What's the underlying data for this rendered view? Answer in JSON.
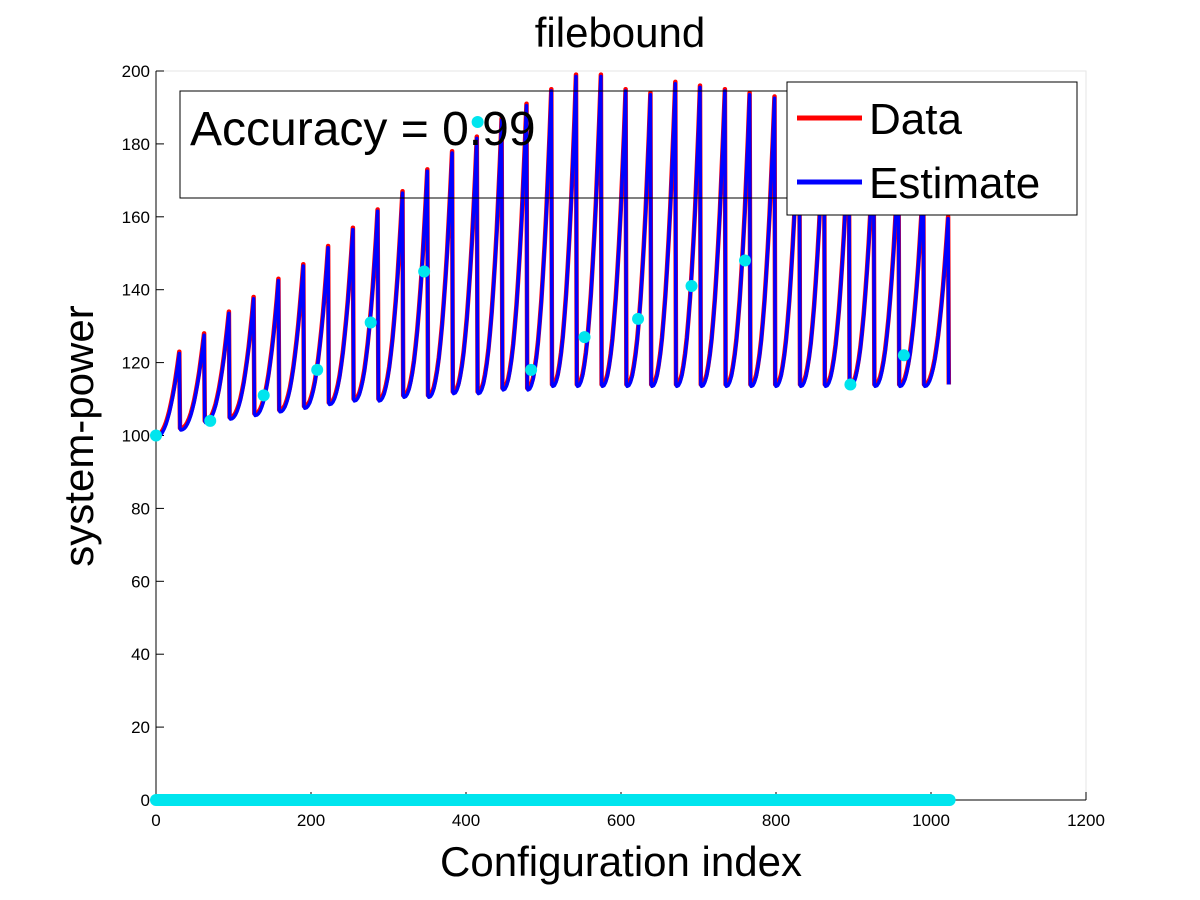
{
  "chart_data": {
    "type": "line",
    "title": "filebound",
    "xlabel": "Configuration index",
    "ylabel": "system-power",
    "xlim": [
      0,
      1200
    ],
    "ylim": [
      0,
      200
    ],
    "xticks": [
      0,
      200,
      400,
      600,
      800,
      1000,
      1200
    ],
    "yticks": [
      0,
      20,
      40,
      60,
      80,
      100,
      120,
      140,
      160,
      180,
      200
    ],
    "annotation": "Accuracy = 0.99",
    "legend": {
      "position": "top-right",
      "entries": [
        {
          "label": "Data",
          "color": "#ff0000"
        },
        {
          "label": "Estimate",
          "color": "#0000ff"
        }
      ]
    },
    "sawtooth": {
      "period": 32,
      "count": 32,
      "cycles": [
        {
          "start": 100,
          "peak": 123,
          "drop": 102
        },
        {
          "start": 102,
          "peak": 128,
          "drop": 104
        },
        {
          "start": 104,
          "peak": 134,
          "drop": 105
        },
        {
          "start": 105,
          "peak": 138,
          "drop": 106
        },
        {
          "start": 106,
          "peak": 143,
          "drop": 107
        },
        {
          "start": 107,
          "peak": 147,
          "drop": 108
        },
        {
          "start": 108,
          "peak": 152,
          "drop": 109
        },
        {
          "start": 109,
          "peak": 157,
          "drop": 110
        },
        {
          "start": 110,
          "peak": 162,
          "drop": 110
        },
        {
          "start": 110,
          "peak": 167,
          "drop": 111
        },
        {
          "start": 111,
          "peak": 173,
          "drop": 111
        },
        {
          "start": 111,
          "peak": 178,
          "drop": 112
        },
        {
          "start": 112,
          "peak": 182,
          "drop": 112
        },
        {
          "start": 112,
          "peak": 187,
          "drop": 113
        },
        {
          "start": 113,
          "peak": 191,
          "drop": 113
        },
        {
          "start": 113,
          "peak": 195,
          "drop": 114
        },
        {
          "start": 114,
          "peak": 199,
          "drop": 114
        },
        {
          "start": 114,
          "peak": 199,
          "drop": 114
        },
        {
          "start": 114,
          "peak": 195,
          "drop": 114
        },
        {
          "start": 114,
          "peak": 194,
          "drop": 114
        },
        {
          "start": 114,
          "peak": 197,
          "drop": 114
        },
        {
          "start": 114,
          "peak": 196,
          "drop": 114
        },
        {
          "start": 114,
          "peak": 195,
          "drop": 114
        },
        {
          "start": 114,
          "peak": 194,
          "drop": 114
        },
        {
          "start": 114,
          "peak": 193,
          "drop": 114
        },
        {
          "start": 114,
          "peak": 193,
          "drop": 114
        },
        {
          "start": 114,
          "peak": 188,
          "drop": 114
        },
        {
          "start": 114,
          "peak": 184,
          "drop": 114
        },
        {
          "start": 114,
          "peak": 180,
          "drop": 114
        },
        {
          "start": 114,
          "peak": 176,
          "drop": 114
        },
        {
          "start": 114,
          "peak": 170,
          "drop": 114
        },
        {
          "start": 114,
          "peak": 160,
          "drop": 114
        }
      ]
    },
    "markers": {
      "color": "#00e5ee",
      "points": [
        {
          "x": 0,
          "y": 100
        },
        {
          "x": 70,
          "y": 104
        },
        {
          "x": 139,
          "y": 111
        },
        {
          "x": 208,
          "y": 118
        },
        {
          "x": 277,
          "y": 131
        },
        {
          "x": 346,
          "y": 145
        },
        {
          "x": 415,
          "y": 186
        },
        {
          "x": 484,
          "y": 118
        },
        {
          "x": 553,
          "y": 127
        },
        {
          "x": 622,
          "y": 132
        },
        {
          "x": 691,
          "y": 141
        },
        {
          "x": 760,
          "y": 148
        },
        {
          "x": 896,
          "y": 114
        },
        {
          "x": 965,
          "y": 122
        }
      ],
      "baseline": {
        "y": 0,
        "x_start": 0,
        "x_end": 1024
      }
    }
  }
}
